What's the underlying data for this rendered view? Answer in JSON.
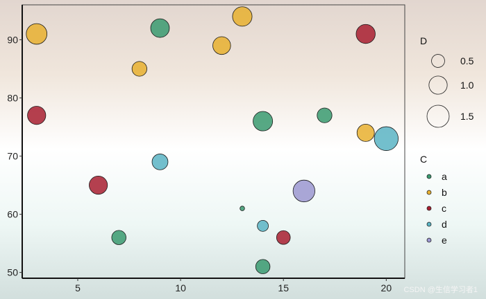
{
  "chart_data": {
    "type": "scatter",
    "title": "",
    "xlabel": "",
    "ylabel": "",
    "xlim": [
      2.3,
      20.9
    ],
    "ylim": [
      49,
      96
    ],
    "x_ticks": [
      5,
      10,
      15,
      20
    ],
    "y_ticks": [
      50,
      60,
      70,
      80,
      90
    ],
    "grid": false,
    "background_gradient": [
      "#e2d6cf",
      "#f0e6dc",
      "#ffffff",
      "#eef7f5",
      "#d2dfdd"
    ],
    "size_legend": {
      "title": "D",
      "placement": "right",
      "values": [
        0.5,
        1.0,
        1.5
      ],
      "labels": [
        "0.5",
        "1.0",
        "1.5"
      ]
    },
    "color_legend": {
      "title": "C",
      "placement": "right",
      "categories": [
        "a",
        "b",
        "c",
        "d",
        "e"
      ],
      "labels": [
        "a",
        "b",
        "c",
        "d",
        "e"
      ]
    },
    "colors": {
      "a": "#3a9a70",
      "b": "#e8b030",
      "c": "#a81e30",
      "d": "#5ab4c4",
      "e": "#9b96d0"
    },
    "points": [
      {
        "x": 3,
        "y": 91,
        "c": "b",
        "d": 1.3
      },
      {
        "x": 3,
        "y": 77,
        "c": "c",
        "d": 1.0
      },
      {
        "x": 6,
        "y": 65,
        "c": "c",
        "d": 1.0
      },
      {
        "x": 7,
        "y": 56,
        "c": "a",
        "d": 0.6
      },
      {
        "x": 8,
        "y": 85,
        "c": "b",
        "d": 0.65
      },
      {
        "x": 9,
        "y": 92,
        "c": "a",
        "d": 1.05
      },
      {
        "x": 9,
        "y": 69,
        "c": "d",
        "d": 0.75
      },
      {
        "x": 12,
        "y": 89,
        "c": "b",
        "d": 0.95
      },
      {
        "x": 13,
        "y": 94,
        "c": "b",
        "d": 1.15
      },
      {
        "x": 13,
        "y": 61,
        "c": "a",
        "d": 0.05
      },
      {
        "x": 14,
        "y": 76,
        "c": "a",
        "d": 1.15
      },
      {
        "x": 14,
        "y": 58,
        "c": "d",
        "d": 0.35
      },
      {
        "x": 14,
        "y": 51,
        "c": "a",
        "d": 0.6
      },
      {
        "x": 15,
        "y": 56,
        "c": "c",
        "d": 0.55
      },
      {
        "x": 16,
        "y": 64,
        "c": "e",
        "d": 1.45
      },
      {
        "x": 17,
        "y": 77,
        "c": "a",
        "d": 0.65
      },
      {
        "x": 19,
        "y": 91,
        "c": "c",
        "d": 1.1
      },
      {
        "x": 19,
        "y": 74,
        "c": "b",
        "d": 0.9
      },
      {
        "x": 20,
        "y": 73,
        "c": "d",
        "d": 1.75
      }
    ]
  },
  "watermark": "CSDN @生信学习者1"
}
